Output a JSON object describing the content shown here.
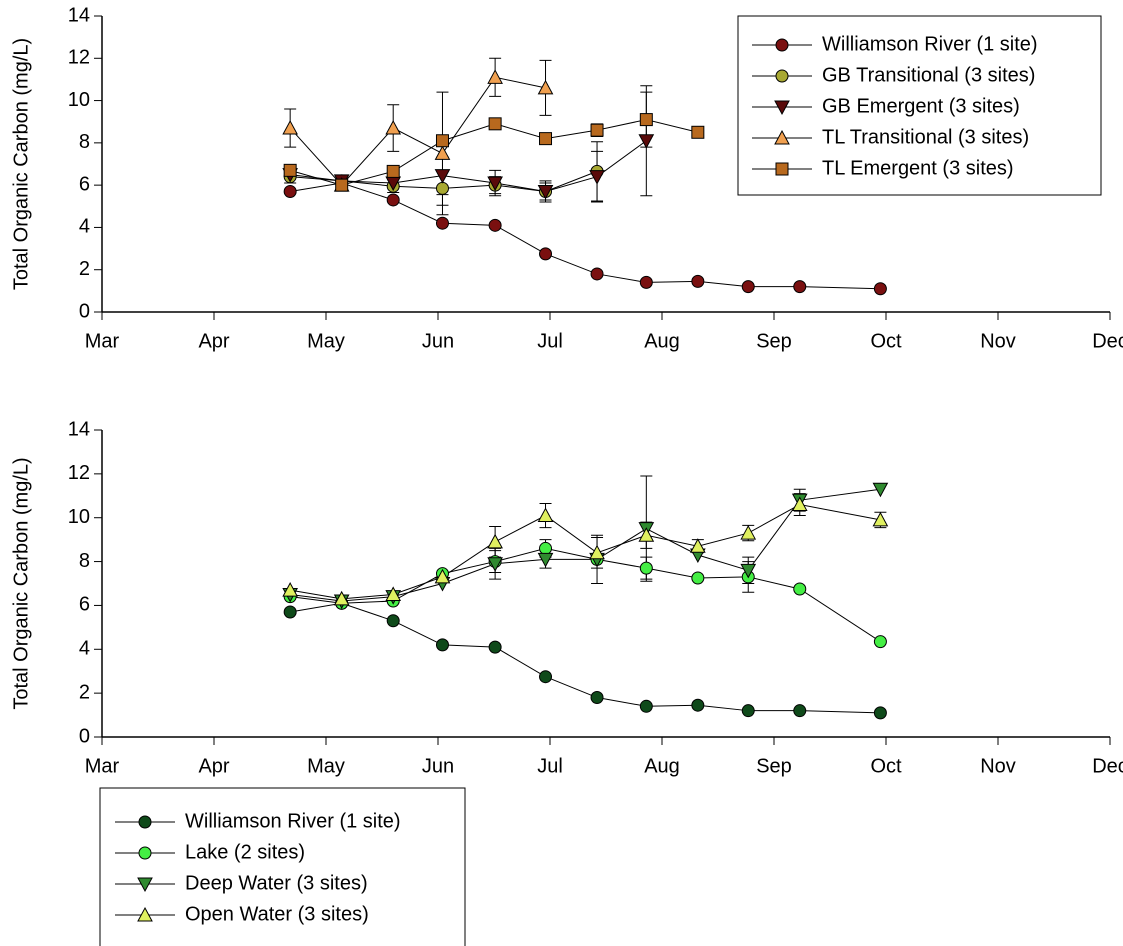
{
  "chart_data": [
    {
      "type": "line",
      "ylabel": "Total Organic Carbon (mg/L)",
      "xlim": [
        0,
        9
      ],
      "xticks": [
        {
          "value": 0,
          "label": "Mar"
        },
        {
          "value": 1,
          "label": "Apr"
        },
        {
          "value": 2,
          "label": "May"
        },
        {
          "value": 3,
          "label": "Jun"
        },
        {
          "value": 4,
          "label": "Jul"
        },
        {
          "value": 5,
          "label": "Aug"
        },
        {
          "value": 6,
          "label": "Sep"
        },
        {
          "value": 7,
          "label": "Oct"
        },
        {
          "value": 8,
          "label": "Nov"
        },
        {
          "value": 9,
          "label": "Dec"
        }
      ],
      "ylim": [
        0,
        14
      ],
      "yticks": [
        0,
        2,
        4,
        6,
        8,
        10,
        12,
        14
      ],
      "series": [
        {
          "name": "Williamson River (1 site)",
          "color": "#7a1010",
          "marker": "circle",
          "x": [
            1.68,
            2.14,
            2.6,
            3.04,
            3.51,
            3.96,
            4.42,
            4.86,
            5.32,
            5.77,
            6.23,
            6.95
          ],
          "values": [
            5.7,
            6.1,
            5.3,
            4.2,
            4.1,
            2.75,
            1.8,
            1.4,
            1.45,
            1.2,
            1.2,
            1.1
          ],
          "errors": [
            null,
            null,
            null,
            null,
            null,
            null,
            null,
            null,
            null,
            null,
            null,
            null
          ]
        },
        {
          "name": "GB Transitional (3 sites)",
          "color": "#a8a832",
          "marker": "circle",
          "x": [
            1.68,
            2.14,
            2.6,
            3.04,
            3.51,
            3.96,
            4.42
          ],
          "values": [
            6.4,
            6.2,
            5.95,
            5.85,
            6.0,
            5.7,
            6.65
          ],
          "errors": [
            0.3,
            null,
            0.3,
            0.8,
            0.4,
            0.4,
            1.4
          ]
        },
        {
          "name": "GB Emergent (3 sites)",
          "color": "#5a0a0a",
          "marker": "triangle-down",
          "x": [
            1.68,
            2.14,
            2.6,
            3.04,
            3.51,
            3.96,
            4.42,
            4.86
          ],
          "values": [
            6.5,
            6.2,
            6.1,
            6.45,
            6.1,
            5.7,
            6.4,
            8.1
          ],
          "errors": [
            null,
            null,
            null,
            0.9,
            0.6,
            0.5,
            1.2,
            2.6
          ]
        },
        {
          "name": "TL Transitional (3 sites)",
          "color": "#f0a050",
          "marker": "triangle-up",
          "x": [
            1.68,
            2.14,
            2.6,
            3.04,
            3.51,
            3.96
          ],
          "values": [
            8.7,
            6.0,
            8.7,
            7.5,
            11.1,
            10.6
          ],
          "errors": [
            0.9,
            null,
            1.1,
            2.9,
            0.9,
            1.3
          ]
        },
        {
          "name": "TL Emergent (3 sites)",
          "color": "#b8691e",
          "marker": "square",
          "x": [
            1.68,
            2.14,
            2.6,
            3.04,
            3.51,
            3.96,
            4.42,
            4.86,
            5.32
          ],
          "values": [
            6.7,
            6.0,
            6.65,
            8.1,
            8.9,
            8.2,
            8.6,
            9.1,
            8.5
          ],
          "errors": [
            null,
            null,
            null,
            null,
            null,
            null,
            0.3,
            1.3,
            null
          ]
        }
      ]
    },
    {
      "type": "line",
      "ylabel": "Total Organic Carbon (mg/L)",
      "xlim": [
        0,
        9
      ],
      "xticks": [
        {
          "value": 0,
          "label": "Mar"
        },
        {
          "value": 1,
          "label": "Apr"
        },
        {
          "value": 2,
          "label": "May"
        },
        {
          "value": 3,
          "label": "Jun"
        },
        {
          "value": 4,
          "label": "Jul"
        },
        {
          "value": 5,
          "label": "Aug"
        },
        {
          "value": 6,
          "label": "Sep"
        },
        {
          "value": 7,
          "label": "Oct"
        },
        {
          "value": 8,
          "label": "Nov"
        },
        {
          "value": 9,
          "label": "Dec"
        }
      ],
      "ylim": [
        0,
        14
      ],
      "yticks": [
        0,
        2,
        4,
        6,
        8,
        10,
        12,
        14
      ],
      "series": [
        {
          "name": "Williamson River (1 site)",
          "color": "#0f4a1a",
          "marker": "circle",
          "x": [
            1.68,
            2.14,
            2.6,
            3.04,
            3.51,
            3.96,
            4.42,
            4.86,
            5.32,
            5.77,
            6.23,
            6.95
          ],
          "values": [
            5.7,
            6.1,
            5.3,
            4.2,
            4.1,
            2.75,
            1.8,
            1.4,
            1.45,
            1.2,
            1.2,
            1.1
          ],
          "errors": [
            null,
            null,
            null,
            null,
            null,
            null,
            null,
            null,
            null,
            null,
            null,
            null
          ]
        },
        {
          "name": "Lake (2 sites)",
          "color": "#44ee44",
          "marker": "circle",
          "x": [
            1.68,
            2.14,
            2.6,
            3.04,
            3.51,
            3.96,
            4.42,
            4.86,
            5.32,
            5.77,
            6.23,
            6.95
          ],
          "values": [
            6.4,
            6.1,
            6.2,
            7.45,
            8.0,
            8.6,
            8.1,
            7.7,
            7.25,
            7.3,
            6.75,
            4.35
          ],
          "errors": [
            null,
            null,
            null,
            null,
            0.5,
            0.4,
            null,
            0.5,
            null,
            0.7,
            null,
            null
          ]
        },
        {
          "name": "Deep Water (3 sites)",
          "color": "#2f8a2f",
          "marker": "triangle-down",
          "x": [
            1.68,
            2.14,
            2.6,
            3.04,
            3.51,
            3.96,
            4.42,
            4.86,
            5.32,
            5.77,
            6.23,
            6.95
          ],
          "values": [
            6.5,
            6.2,
            6.4,
            7.0,
            7.9,
            8.1,
            8.1,
            9.5,
            8.3,
            7.6,
            10.8,
            11.3
          ],
          "errors": [
            null,
            null,
            null,
            null,
            0.7,
            0.4,
            1.1,
            2.4,
            null,
            0.6,
            0.5,
            null
          ]
        },
        {
          "name": "Open Water (3 sites)",
          "color": "#e0f060",
          "marker": "triangle-up",
          "x": [
            1.68,
            2.14,
            2.6,
            3.04,
            3.51,
            3.96,
            4.42,
            4.86,
            5.32,
            5.77,
            6.23,
            6.95
          ],
          "values": [
            6.7,
            6.3,
            6.5,
            7.3,
            8.9,
            10.1,
            8.4,
            9.2,
            8.7,
            9.3,
            10.6,
            9.9
          ],
          "errors": [
            null,
            null,
            null,
            null,
            0.7,
            0.55,
            0.7,
            0.6,
            0.3,
            0.35,
            0.5,
            0.35
          ]
        }
      ]
    }
  ]
}
